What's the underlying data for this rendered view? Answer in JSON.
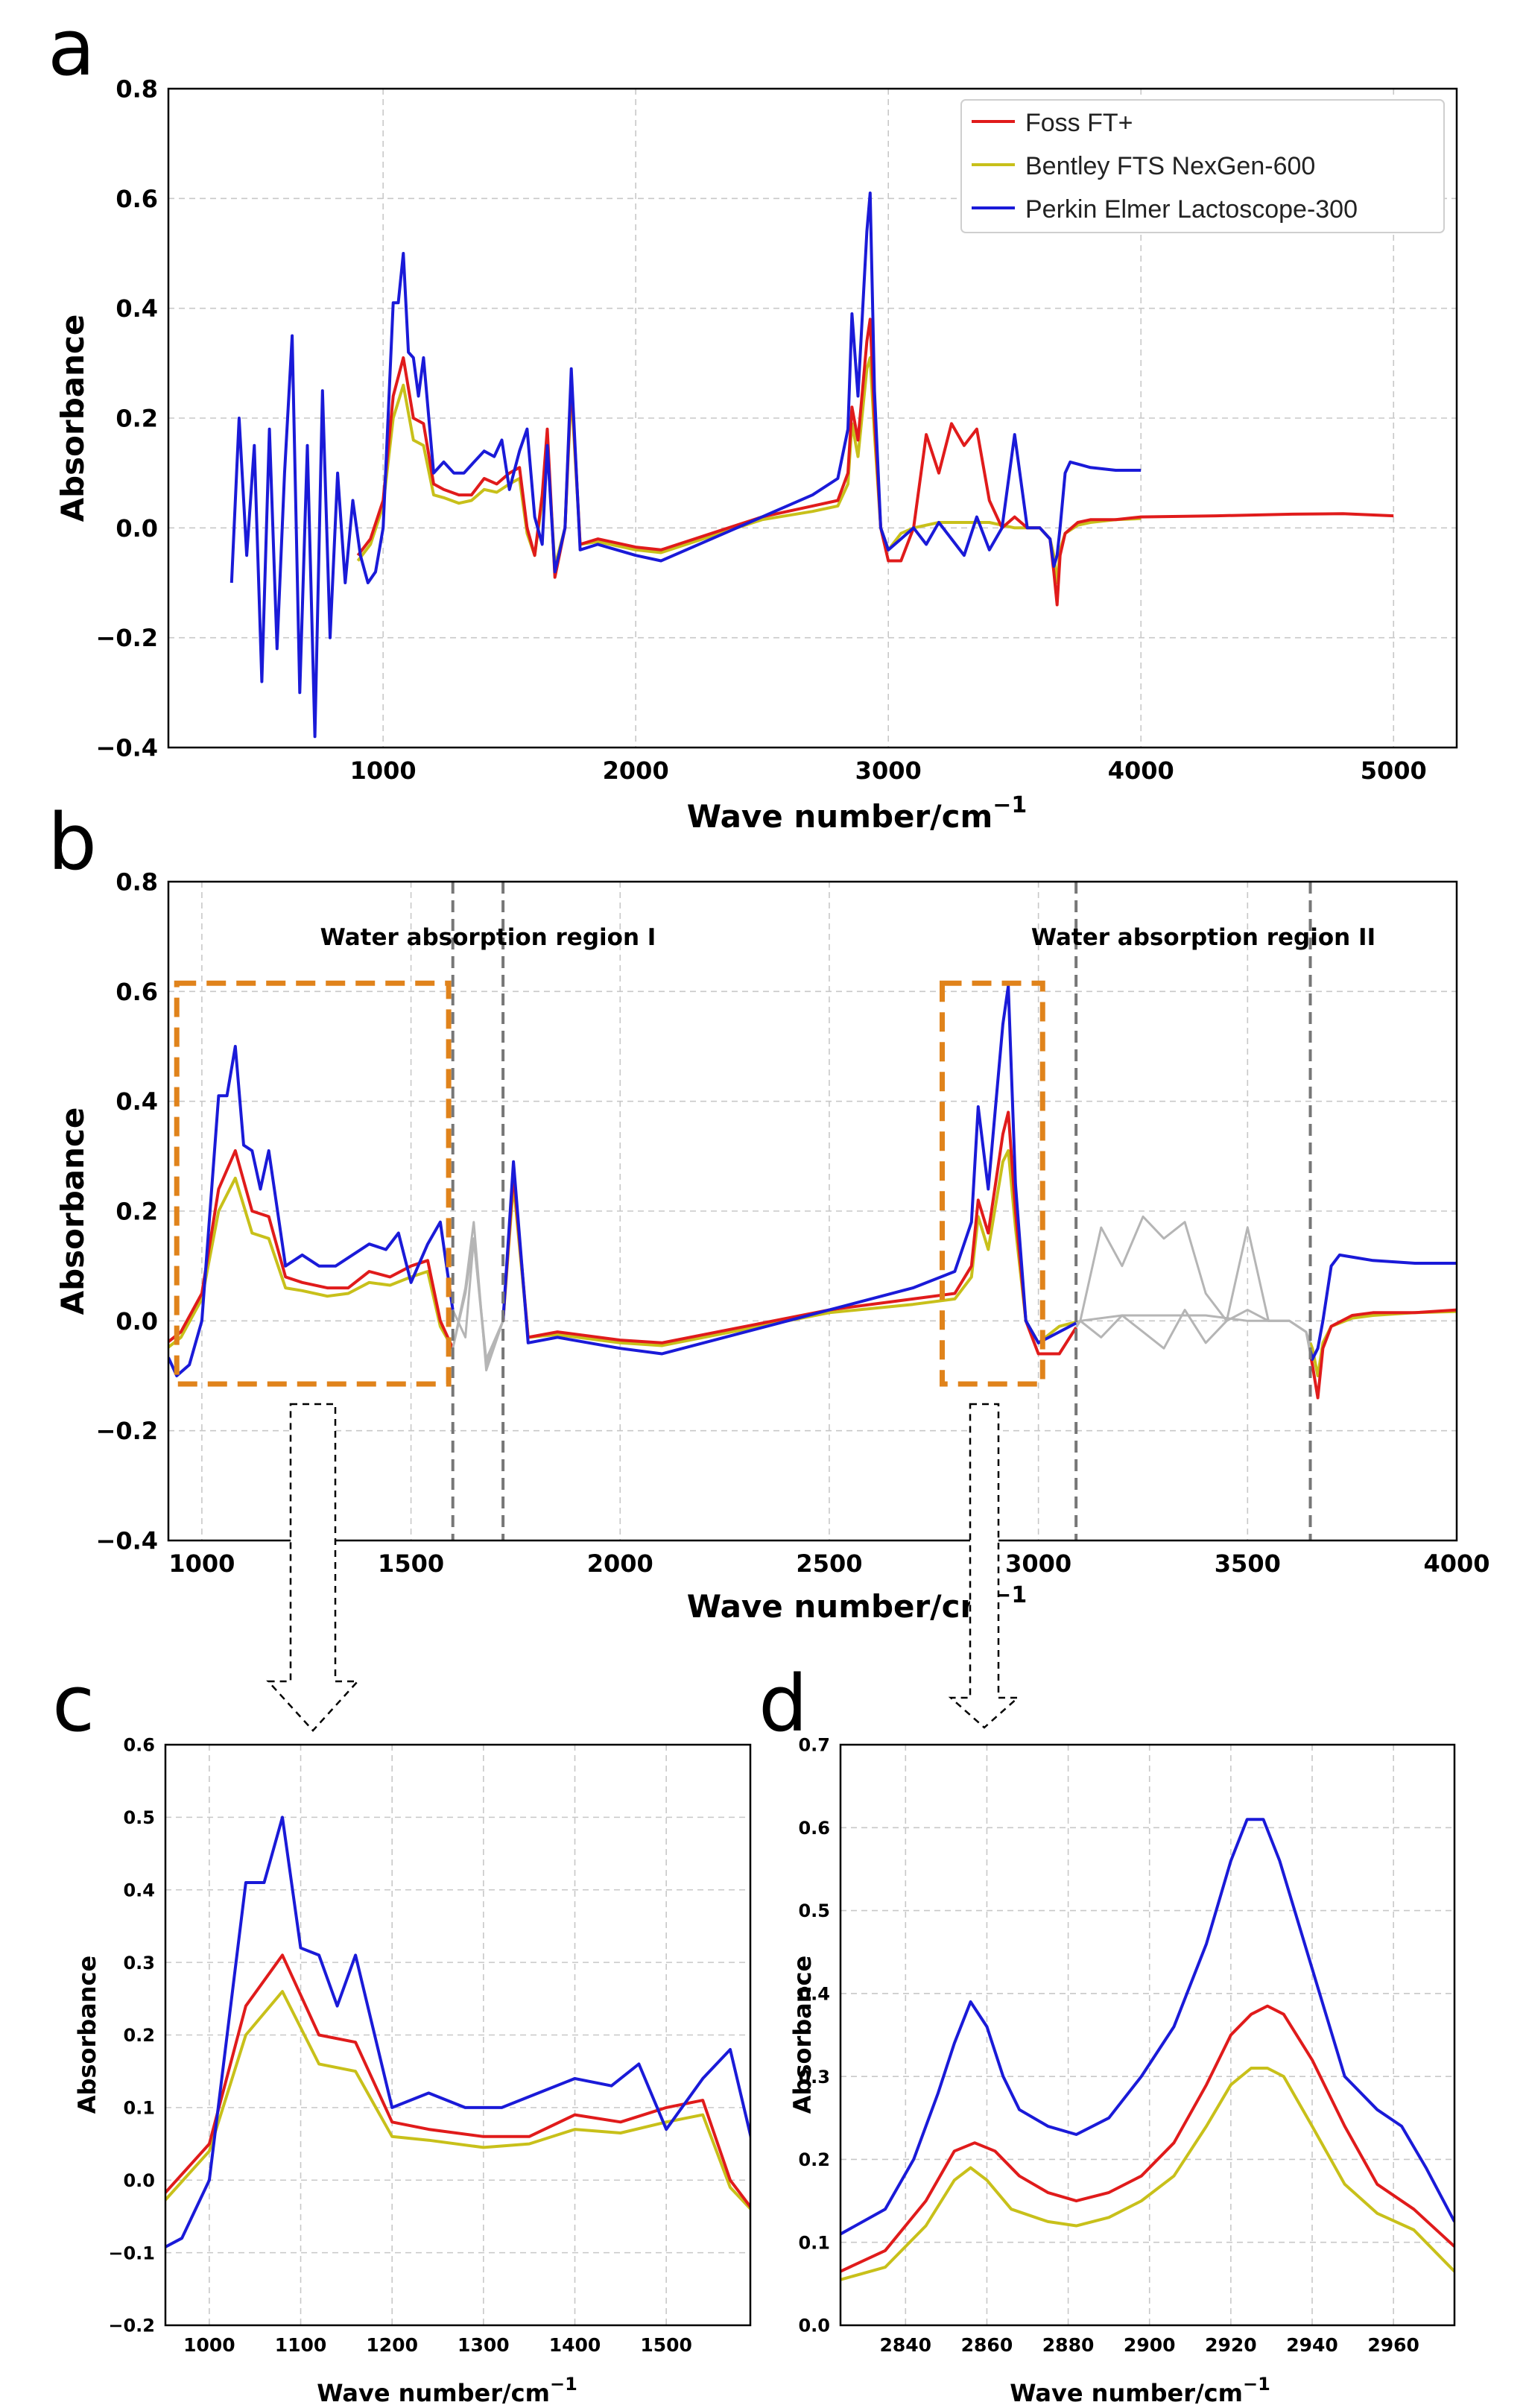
{
  "colors": {
    "foss": "#e01b1b",
    "bentley": "#c8c01a",
    "perkin": "#1a1ad8",
    "highlight_box": "#e0831b",
    "region_line": "#777777",
    "masked": "#b5b5b5"
  },
  "chart_data": [
    {
      "id": "a",
      "type": "line",
      "panel_label": "a",
      "xlabel": "Wave number/cm",
      "xlabel_superscript": "−1",
      "ylabel": "Absorbance",
      "xlim": [
        150,
        5250
      ],
      "ylim": [
        -0.4,
        0.8
      ],
      "xticks": [
        1000,
        2000,
        3000,
        4000,
        5000
      ],
      "yticks": [
        -0.4,
        -0.2,
        0.0,
        0.2,
        0.4,
        0.6,
        0.8
      ],
      "grid": true,
      "legend": {
        "placement": "top-right",
        "entries": [
          "Foss FT+",
          "Bentley FTS NexGen-600",
          "Perkin Elmer Lactoscope-300"
        ]
      },
      "series": [
        {
          "name": "Foss FT+",
          "color_key": "foss",
          "x": [
            900,
            950,
            1000,
            1040,
            1080,
            1120,
            1160,
            1200,
            1240,
            1300,
            1350,
            1400,
            1450,
            1500,
            1540,
            1570,
            1600,
            1630,
            1650,
            1680,
            1720,
            1745,
            1780,
            1850,
            2000,
            2100,
            2300,
            2500,
            2700,
            2800,
            2840,
            2856,
            2880,
            2915,
            2928,
            2945,
            2970,
            3000,
            3050,
            3100,
            3150,
            3200,
            3250,
            3300,
            3350,
            3400,
            3450,
            3500,
            3550,
            3600,
            3640,
            3655,
            3668,
            3680,
            3700,
            3750,
            3800,
            3900,
            4000,
            4300,
            4600,
            4800,
            5000
          ],
          "y": [
            -0.05,
            -0.02,
            0.05,
            0.24,
            0.31,
            0.2,
            0.19,
            0.08,
            0.07,
            0.06,
            0.06,
            0.09,
            0.08,
            0.1,
            0.11,
            0.0,
            -0.05,
            0.06,
            0.18,
            -0.09,
            0.0,
            0.27,
            -0.03,
            -0.02,
            -0.035,
            -0.04,
            -0.01,
            0.02,
            0.04,
            0.05,
            0.1,
            0.22,
            0.16,
            0.34,
            0.38,
            0.2,
            0.0,
            -0.06,
            -0.06,
            0.0,
            0.17,
            0.1,
            0.19,
            0.15,
            0.18,
            0.05,
            0.0,
            0.02,
            0.0,
            0.0,
            -0.02,
            -0.08,
            -0.14,
            -0.05,
            -0.01,
            0.01,
            0.015,
            0.015,
            0.02,
            0.022,
            0.025,
            0.026,
            0.022
          ]
        },
        {
          "name": "Bentley FTS NexGen-600",
          "color_key": "bentley",
          "x": [
            900,
            950,
            1000,
            1040,
            1080,
            1120,
            1160,
            1200,
            1240,
            1300,
            1350,
            1400,
            1450,
            1500,
            1540,
            1570,
            1600,
            1630,
            1650,
            1680,
            1720,
            1745,
            1780,
            1850,
            2000,
            2100,
            2300,
            2500,
            2700,
            2800,
            2840,
            2856,
            2880,
            2915,
            2928,
            2945,
            2970,
            3000,
            3050,
            3100,
            3200,
            3300,
            3400,
            3500,
            3600,
            3640,
            3655,
            3668,
            3680,
            3700,
            3750,
            3800,
            3900,
            4000
          ],
          "y": [
            -0.06,
            -0.03,
            0.04,
            0.2,
            0.26,
            0.16,
            0.15,
            0.06,
            0.055,
            0.045,
            0.05,
            0.07,
            0.065,
            0.08,
            0.09,
            -0.01,
            -0.05,
            0.05,
            0.15,
            -0.07,
            0.0,
            0.25,
            -0.03,
            -0.025,
            -0.04,
            -0.045,
            -0.015,
            0.015,
            0.03,
            0.04,
            0.08,
            0.19,
            0.13,
            0.29,
            0.31,
            0.17,
            0.0,
            -0.04,
            -0.01,
            0.0,
            0.01,
            0.01,
            0.01,
            0.0,
            0.0,
            -0.02,
            -0.05,
            -0.1,
            -0.04,
            -0.01,
            0.005,
            0.01,
            0.015,
            0.017
          ]
        },
        {
          "name": "Perkin Elmer Lactoscope-300",
          "color_key": "perkin",
          "x": [
            400,
            430,
            460,
            490,
            520,
            550,
            580,
            610,
            640,
            670,
            700,
            730,
            760,
            790,
            820,
            850,
            880,
            910,
            940,
            970,
            1000,
            1040,
            1060,
            1080,
            1100,
            1120,
            1140,
            1160,
            1200,
            1240,
            1280,
            1320,
            1360,
            1400,
            1440,
            1470,
            1500,
            1540,
            1570,
            1600,
            1630,
            1650,
            1680,
            1720,
            1745,
            1780,
            1850,
            2000,
            2100,
            2300,
            2500,
            2700,
            2800,
            2840,
            2856,
            2880,
            2915,
            2928,
            2945,
            2970,
            3000,
            3050,
            3100,
            3150,
            3200,
            3250,
            3300,
            3350,
            3400,
            3450,
            3500,
            3550,
            3600,
            3640,
            3655,
            3668,
            3680,
            3700,
            3720,
            3760,
            3800,
            3900,
            4000
          ],
          "y": [
            -0.1,
            0.2,
            -0.05,
            0.15,
            -0.28,
            0.18,
            -0.22,
            0.1,
            0.35,
            -0.3,
            0.15,
            -0.38,
            0.25,
            -0.2,
            0.1,
            -0.1,
            0.05,
            -0.05,
            -0.1,
            -0.08,
            0.0,
            0.41,
            0.41,
            0.5,
            0.32,
            0.31,
            0.24,
            0.31,
            0.1,
            0.12,
            0.1,
            0.1,
            0.12,
            0.14,
            0.13,
            0.16,
            0.07,
            0.14,
            0.18,
            0.02,
            -0.03,
            0.15,
            -0.08,
            0.0,
            0.29,
            -0.04,
            -0.03,
            -0.05,
            -0.06,
            -0.02,
            0.02,
            0.06,
            0.09,
            0.18,
            0.39,
            0.24,
            0.54,
            0.61,
            0.25,
            0.0,
            -0.04,
            -0.02,
            0.0,
            -0.03,
            0.01,
            -0.02,
            -0.05,
            0.02,
            -0.04,
            0.0,
            0.17,
            0.0,
            0.0,
            -0.02,
            -0.07,
            -0.05,
            0.0,
            0.1,
            0.12,
            0.115,
            0.11,
            0.105,
            0.105
          ]
        }
      ]
    },
    {
      "id": "b",
      "type": "line",
      "panel_label": "b",
      "xlabel": "Wave number/cm",
      "xlabel_superscript": "−1",
      "ylabel": "Absorbance",
      "xlim": [
        920,
        4000
      ],
      "ylim": [
        -0.4,
        0.8
      ],
      "xticks": [
        1000,
        1500,
        2000,
        2500,
        3000,
        3500,
        4000
      ],
      "yticks": [
        -0.4,
        -0.2,
        0.0,
        0.2,
        0.4,
        0.6,
        0.8
      ],
      "grid": true,
      "water_regions": [
        {
          "label": "Water absorption region I",
          "from": 1600,
          "to": 1720
        },
        {
          "label": "Water absorption region II",
          "from": 3090,
          "to": 3650
        }
      ],
      "highlight_boxes": [
        {
          "x": [
            940,
            1590
          ],
          "y": [
            -0.115,
            0.615
          ]
        },
        {
          "x": [
            2770,
            3010
          ],
          "y": [
            -0.115,
            0.615
          ]
        }
      ]
    },
    {
      "id": "c",
      "type": "line",
      "panel_label": "c",
      "xlabel": "Wave number/cm",
      "xlabel_superscript": "−1",
      "ylabel": "Absorbance",
      "xlim": [
        952,
        1592
      ],
      "ylim": [
        -0.2,
        0.6
      ],
      "xticks": [
        1000,
        1100,
        1200,
        1300,
        1400,
        1500
      ],
      "yticks": [
        -0.2,
        -0.1,
        0.0,
        0.1,
        0.2,
        0.3,
        0.4,
        0.5,
        0.6
      ],
      "grid": true
    },
    {
      "id": "d",
      "type": "line",
      "panel_label": "d",
      "xlabel": "Wave number/cm",
      "xlabel_superscript": "−1",
      "ylabel": "Absorbance",
      "xlim": [
        2824,
        2975
      ],
      "ylim": [
        0.0,
        0.7
      ],
      "xticks": [
        2840,
        2860,
        2880,
        2900,
        2920,
        2940,
        2960
      ],
      "yticks": [
        0.0,
        0.1,
        0.2,
        0.3,
        0.4,
        0.5,
        0.6,
        0.7
      ],
      "grid": true,
      "series": [
        {
          "name": "Foss FT+",
          "color_key": "foss",
          "x": [
            2824,
            2835,
            2845,
            2852,
            2857,
            2862,
            2868,
            2875,
            2882,
            2890,
            2898,
            2906,
            2914,
            2920,
            2925,
            2929,
            2933,
            2940,
            2948,
            2956,
            2965,
            2975
          ],
          "y": [
            0.065,
            0.09,
            0.15,
            0.21,
            0.22,
            0.21,
            0.18,
            0.16,
            0.15,
            0.16,
            0.18,
            0.22,
            0.29,
            0.35,
            0.375,
            0.385,
            0.375,
            0.32,
            0.24,
            0.17,
            0.14,
            0.095
          ]
        },
        {
          "name": "Bentley FTS NexGen-600",
          "color_key": "bentley",
          "x": [
            2824,
            2835,
            2845,
            2852,
            2856,
            2860,
            2866,
            2875,
            2882,
            2890,
            2898,
            2906,
            2914,
            2920,
            2925,
            2929,
            2933,
            2940,
            2948,
            2956,
            2965,
            2975
          ],
          "y": [
            0.055,
            0.07,
            0.12,
            0.175,
            0.19,
            0.175,
            0.14,
            0.125,
            0.12,
            0.13,
            0.15,
            0.18,
            0.24,
            0.29,
            0.31,
            0.31,
            0.3,
            0.24,
            0.17,
            0.135,
            0.115,
            0.065
          ]
        },
        {
          "name": "Perkin Elmer Lactoscope-300",
          "color_key": "perkin",
          "x": [
            2824,
            2835,
            2842,
            2848,
            2852,
            2856,
            2860,
            2864,
            2868,
            2875,
            2882,
            2890,
            2898,
            2906,
            2914,
            2920,
            2924,
            2928,
            2932,
            2940,
            2948,
            2956,
            2962,
            2968,
            2975
          ],
          "y": [
            0.11,
            0.14,
            0.2,
            0.28,
            0.34,
            0.39,
            0.36,
            0.3,
            0.26,
            0.24,
            0.23,
            0.25,
            0.3,
            0.36,
            0.46,
            0.56,
            0.61,
            0.61,
            0.56,
            0.43,
            0.3,
            0.26,
            0.24,
            0.19,
            0.125
          ]
        }
      ]
    }
  ]
}
